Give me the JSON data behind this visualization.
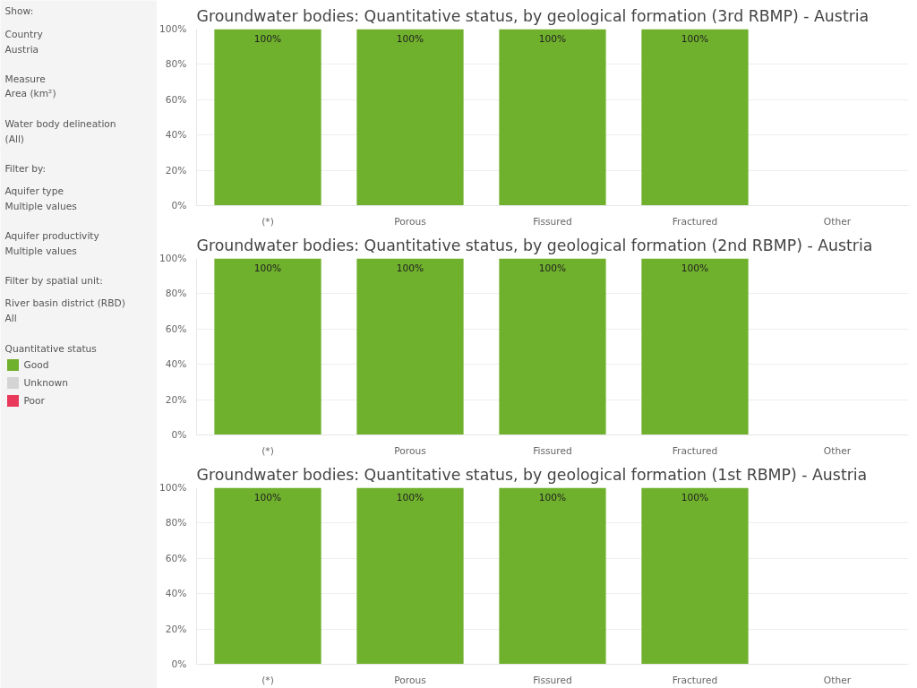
{
  "chart_data": [
    {
      "type": "other",
      "legend_title": "Quantitative status",
      "categories": [
        "Good",
        "Unknown",
        "Poor"
      ],
      "colors": [
        "#6fb02c",
        "#d4d4d4",
        "#e8395b"
      ],
      "annotations": [
        "Show:",
        "Country",
        "Austria",
        "Measure",
        "Area (km²)",
        "Water body delineation",
        "(All)",
        "Filter by:",
        "Aquifer type",
        "Multiple values",
        "Aquifer productivity",
        "Multiple values",
        "Filter by spatial unit:",
        "River basin district (RBD)",
        "All"
      ]
    },
    {
      "type": "bar",
      "title": "Groundwater bodies: Quantitative status, by geological formation (3rd RBMP) - Austria",
      "categories": [
        "(*)",
        "Porous",
        "Fissured",
        "Fractured",
        "Other"
      ],
      "series": [
        {
          "color": "#6fb02c",
          "values": [
            100,
            100,
            100,
            100,
            null
          ],
          "value_labels": [
            "100%",
            "100%",
            "100%",
            "100%",
            null
          ]
        }
      ],
      "ylim": [
        0,
        100
      ],
      "yticks": [
        {
          "value": 0,
          "label": "0%"
        },
        {
          "value": 20,
          "label": "20%"
        },
        {
          "value": 40,
          "label": "40%"
        },
        {
          "value": 60,
          "label": "60%"
        },
        {
          "value": 80,
          "label": "80%"
        },
        {
          "value": 100,
          "label": "100%"
        }
      ],
      "grid": "y"
    },
    {
      "type": "bar",
      "title": "Groundwater bodies: Quantitative status, by geological formation (2nd RBMP) - Austria",
      "categories": [
        "(*)",
        "Porous",
        "Fissured",
        "Fractured",
        "Other"
      ],
      "series": [
        {
          "color": "#6fb02c",
          "values": [
            100,
            100,
            100,
            100,
            null
          ],
          "value_labels": [
            "100%",
            "100%",
            "100%",
            "100%",
            null
          ]
        }
      ],
      "ylim": [
        0,
        100
      ],
      "yticks": [
        {
          "value": 0,
          "label": "0%"
        },
        {
          "value": 20,
          "label": "20%"
        },
        {
          "value": 40,
          "label": "40%"
        },
        {
          "value": 60,
          "label": "60%"
        },
        {
          "value": 80,
          "label": "80%"
        },
        {
          "value": 100,
          "label": "100%"
        }
      ],
      "grid": "y"
    },
    {
      "type": "bar",
      "title": "Groundwater bodies: Quantitative status, by geological formation (1st RBMP) - Austria",
      "categories": [
        "(*)",
        "Porous",
        "Fissured",
        "Fractured",
        "Other"
      ],
      "series": [
        {
          "color": "#6fb02c",
          "values": [
            100,
            100,
            100,
            100,
            null
          ],
          "value_labels": [
            "100%",
            "100%",
            "100%",
            "100%",
            null
          ]
        }
      ],
      "ylim": [
        0,
        100
      ],
      "yticks": [
        {
          "value": 0,
          "label": "0%"
        },
        {
          "value": 20,
          "label": "20%"
        },
        {
          "value": 40,
          "label": "40%"
        },
        {
          "value": 60,
          "label": "60%"
        },
        {
          "value": 80,
          "label": "80%"
        },
        {
          "value": 100,
          "label": "100%"
        }
      ],
      "grid": "y"
    }
  ]
}
